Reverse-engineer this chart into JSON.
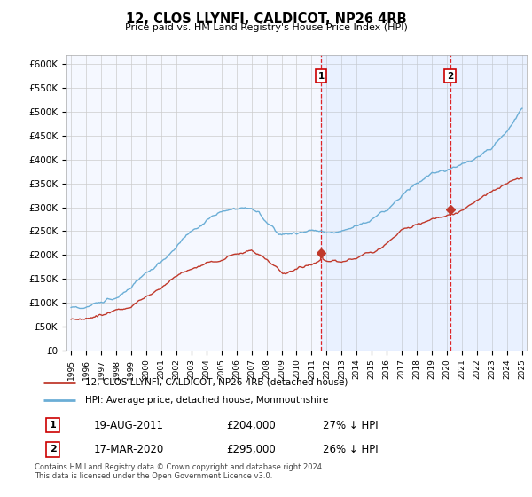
{
  "title": "12, CLOS LLYNFI, CALDICOT, NP26 4RB",
  "subtitle": "Price paid vs. HM Land Registry's House Price Index (HPI)",
  "ylabel_ticks": [
    "£0",
    "£50K",
    "£100K",
    "£150K",
    "£200K",
    "£250K",
    "£300K",
    "£350K",
    "£400K",
    "£450K",
    "£500K",
    "£550K",
    "£600K"
  ],
  "ylim": [
    0,
    620000
  ],
  "yticks": [
    0,
    50000,
    100000,
    150000,
    200000,
    250000,
    300000,
    350000,
    400000,
    450000,
    500000,
    550000,
    600000
  ],
  "hpi_color": "#6baed6",
  "hpi_fill_color": "#ddeeff",
  "price_color": "#c0392b",
  "bg_color": "#f5f8ff",
  "grid_color": "#cccccc",
  "sale1_x": 2011.63,
  "sale2_x": 2020.21,
  "sale1_value": 204000,
  "sale2_value": 295000,
  "legend_price_label": "12, CLOS LLYNFI, CALDICOT, NP26 4RB (detached house)",
  "legend_hpi_label": "HPI: Average price, detached house, Monmouthshire",
  "row1_num": "1",
  "row1_date": "19-AUG-2011",
  "row1_price": "£204,000",
  "row1_hpi": "27% ↓ HPI",
  "row2_num": "2",
  "row2_date": "17-MAR-2020",
  "row2_price": "£295,000",
  "row2_hpi": "26% ↓ HPI",
  "footer": "Contains HM Land Registry data © Crown copyright and database right 2024.\nThis data is licensed under the Open Government Licence v3.0.",
  "xstart": 1995,
  "xend": 2025
}
